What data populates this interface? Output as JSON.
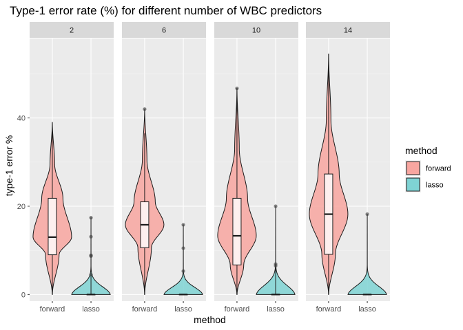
{
  "chart_data": {
    "type": "violin",
    "title": "Type-1 error rate (%) for different number of WBC predictors",
    "xlabel": "method",
    "ylabel": "type-1 error %",
    "ylim": [
      -1.5,
      58
    ],
    "yticks": [
      0,
      20,
      40
    ],
    "grid": true,
    "categories": [
      "forward",
      "lasso"
    ],
    "legend": {
      "title": "method",
      "position": "right",
      "entries": [
        {
          "label": "forward",
          "color": "#F8A6A0"
        },
        {
          "label": "lasso",
          "color": "#7FD3D4"
        }
      ]
    },
    "panels": [
      {
        "label": "2",
        "forward": {
          "min": 0,
          "max": 39,
          "q1": 9,
          "median": 13,
          "q3": 21.8,
          "whisker_lo": 0,
          "whisker_hi": 39,
          "outliers": []
        },
        "lasso": {
          "min": 0,
          "max": 17.4,
          "q1": 0,
          "median": 0,
          "q3": 0,
          "whisker_lo": 0,
          "whisker_hi": 4.5,
          "outliers": [
            4.5,
            8.7,
            8.9,
            13.1,
            17.4
          ]
        }
      },
      {
        "label": "6",
        "forward": {
          "min": 0,
          "max": 42,
          "q1": 10.6,
          "median": 15.8,
          "q3": 21,
          "whisker_lo": 0,
          "whisker_hi": 36.5,
          "outliers": [
            42
          ]
        },
        "lasso": {
          "min": 0,
          "max": 15.8,
          "q1": 0,
          "median": 0,
          "q3": 0,
          "whisker_lo": 0,
          "whisker_hi": 0,
          "outliers": [
            5.3,
            10.5,
            15.8
          ]
        }
      },
      {
        "label": "10",
        "forward": {
          "min": 0,
          "max": 46.7,
          "q1": 6.7,
          "median": 13.3,
          "q3": 21.8,
          "whisker_lo": 0,
          "whisker_hi": 46.7,
          "outliers": [
            46.7
          ]
        },
        "lasso": {
          "min": 0,
          "max": 20,
          "q1": 0,
          "median": 0,
          "q3": 0,
          "whisker_lo": 0,
          "whisker_hi": 6.7,
          "outliers": [
            6.5,
            6.9,
            20
          ]
        }
      },
      {
        "label": "14",
        "forward": {
          "min": 0,
          "max": 54.5,
          "q1": 9.1,
          "median": 18.2,
          "q3": 27.3,
          "whisker_lo": 0,
          "whisker_hi": 54.5,
          "outliers": []
        },
        "lasso": {
          "min": 0,
          "max": 18.2,
          "q1": 0,
          "median": 0,
          "q3": 0,
          "whisker_lo": 0,
          "whisker_hi": 0,
          "outliers": [
            18.2
          ]
        }
      }
    ]
  }
}
